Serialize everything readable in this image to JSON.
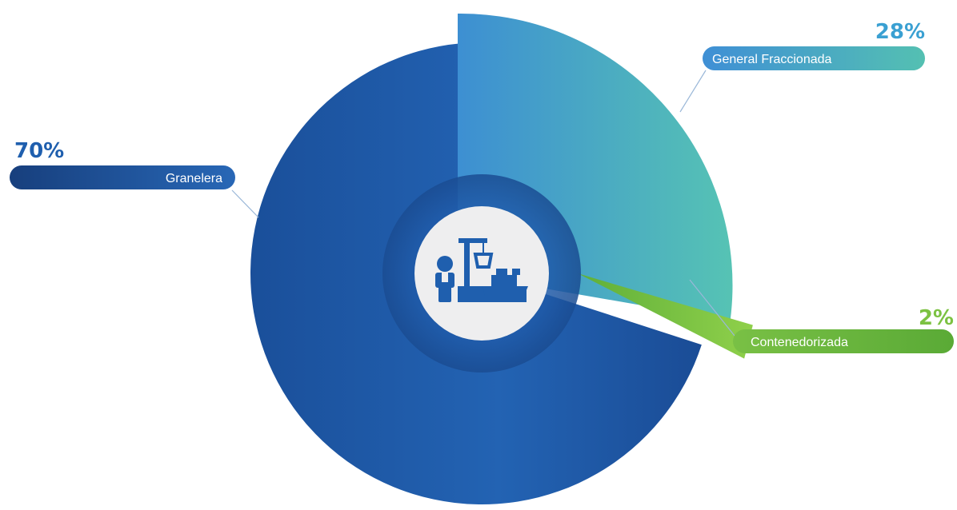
{
  "chart_data": {
    "type": "pie",
    "title": "",
    "slices": [
      {
        "label": "Granelera",
        "value": 70,
        "value_label": "70%",
        "color": "#1f5fae"
      },
      {
        "label": "General Fraccionada",
        "value": 28,
        "value_label": "28%",
        "color": "#4aa6d6"
      },
      {
        "label": "Contenedorizada",
        "value": 2,
        "value_label": "2%",
        "color": "#7cc242"
      }
    ],
    "center_icon": "cargo-port-icon",
    "legend": "callouts"
  }
}
